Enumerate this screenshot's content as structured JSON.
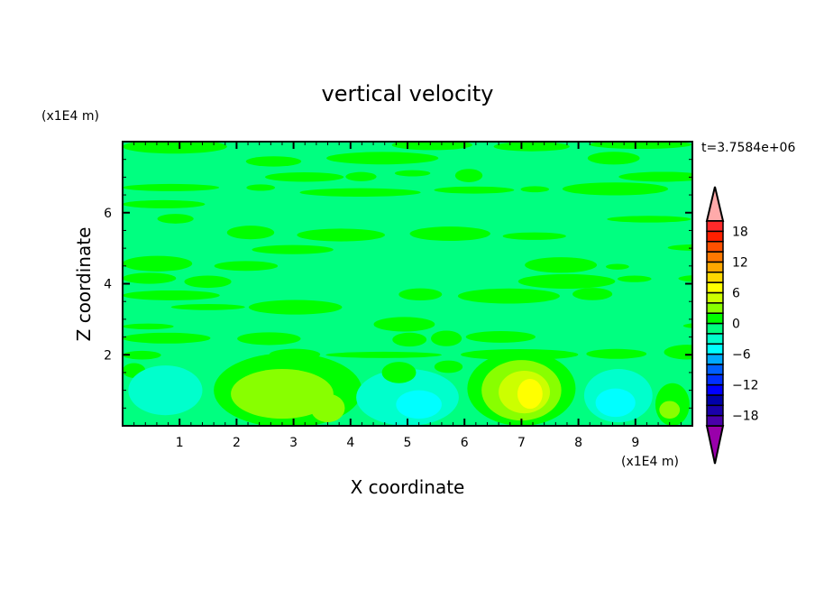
{
  "chart_data": {
    "type": "heatmap",
    "subtype": "filled-contour",
    "title": "vertical velocity",
    "xlabel": "X coordinate",
    "ylabel": "Z coordinate",
    "x_unit": "(x1E4 m)",
    "y_unit": "(x1E4 m)",
    "time_label": "t=3.7584e+06",
    "xlim": [
      0,
      10
    ],
    "ylim": [
      0,
      8
    ],
    "x_ticks": [
      1,
      2,
      3,
      4,
      5,
      6,
      7,
      8,
      9
    ],
    "y_ticks": [
      2,
      4,
      6
    ],
    "colorbar": {
      "levels": [
        -20,
        -18,
        -16,
        -14,
        -12,
        -10,
        -8,
        -6,
        -4,
        -2,
        0,
        2,
        4,
        6,
        8,
        10,
        12,
        14,
        16,
        18,
        20
      ],
      "labels": [
        -18,
        -12,
        -6,
        0,
        6,
        12,
        18
      ],
      "colors": [
        "#4a00aa",
        "#1a00aa",
        "#0000aa",
        "#0000ff",
        "#0030ff",
        "#0060ff",
        "#00aaff",
        "#00ffff",
        "#00ffcc",
        "#00ff80",
        "#00ff00",
        "#88ff00",
        "#ccff00",
        "#ffff00",
        "#ffd800",
        "#ffa800",
        "#ff7800",
        "#ff5000",
        "#ff2000",
        "#ff2a2a"
      ],
      "over_color": "#ffaaaa",
      "under_color": "#9900aa"
    },
    "background_value": -1,
    "features": [
      {
        "x": 0.75,
        "z": 1.0,
        "rx": 0.65,
        "rz": 0.7,
        "value": -3
      },
      {
        "x": 2.9,
        "z": 1.0,
        "rx": 1.3,
        "rz": 1.05,
        "value": 1
      },
      {
        "x": 2.8,
        "z": 0.9,
        "rx": 0.9,
        "rz": 0.7,
        "value": 3
      },
      {
        "x": 3.6,
        "z": 0.5,
        "rx": 0.3,
        "rz": 0.4,
        "value": 3
      },
      {
        "x": 5.0,
        "z": 0.8,
        "rx": 0.9,
        "rz": 0.8,
        "value": -3
      },
      {
        "x": 5.2,
        "z": 0.6,
        "rx": 0.4,
        "rz": 0.4,
        "value": -5
      },
      {
        "x": 4.85,
        "z": 1.5,
        "rx": 0.3,
        "rz": 0.3,
        "value": 1
      },
      {
        "x": 7.0,
        "z": 1.05,
        "rx": 0.95,
        "rz": 1.05,
        "value": 1
      },
      {
        "x": 7.0,
        "z": 1.0,
        "rx": 0.7,
        "rz": 0.85,
        "value": 3
      },
      {
        "x": 7.05,
        "z": 0.95,
        "rx": 0.45,
        "rz": 0.6,
        "value": 5
      },
      {
        "x": 7.15,
        "z": 0.9,
        "rx": 0.22,
        "rz": 0.42,
        "value": 7
      },
      {
        "x": 8.7,
        "z": 0.85,
        "rx": 0.6,
        "rz": 0.75,
        "value": -3
      },
      {
        "x": 8.65,
        "z": 0.65,
        "rx": 0.35,
        "rz": 0.4,
        "value": -5
      },
      {
        "x": 9.65,
        "z": 0.6,
        "rx": 0.3,
        "rz": 0.6,
        "value": 1
      },
      {
        "x": 9.6,
        "z": 0.45,
        "rx": 0.18,
        "rz": 0.25,
        "value": 3
      }
    ]
  }
}
